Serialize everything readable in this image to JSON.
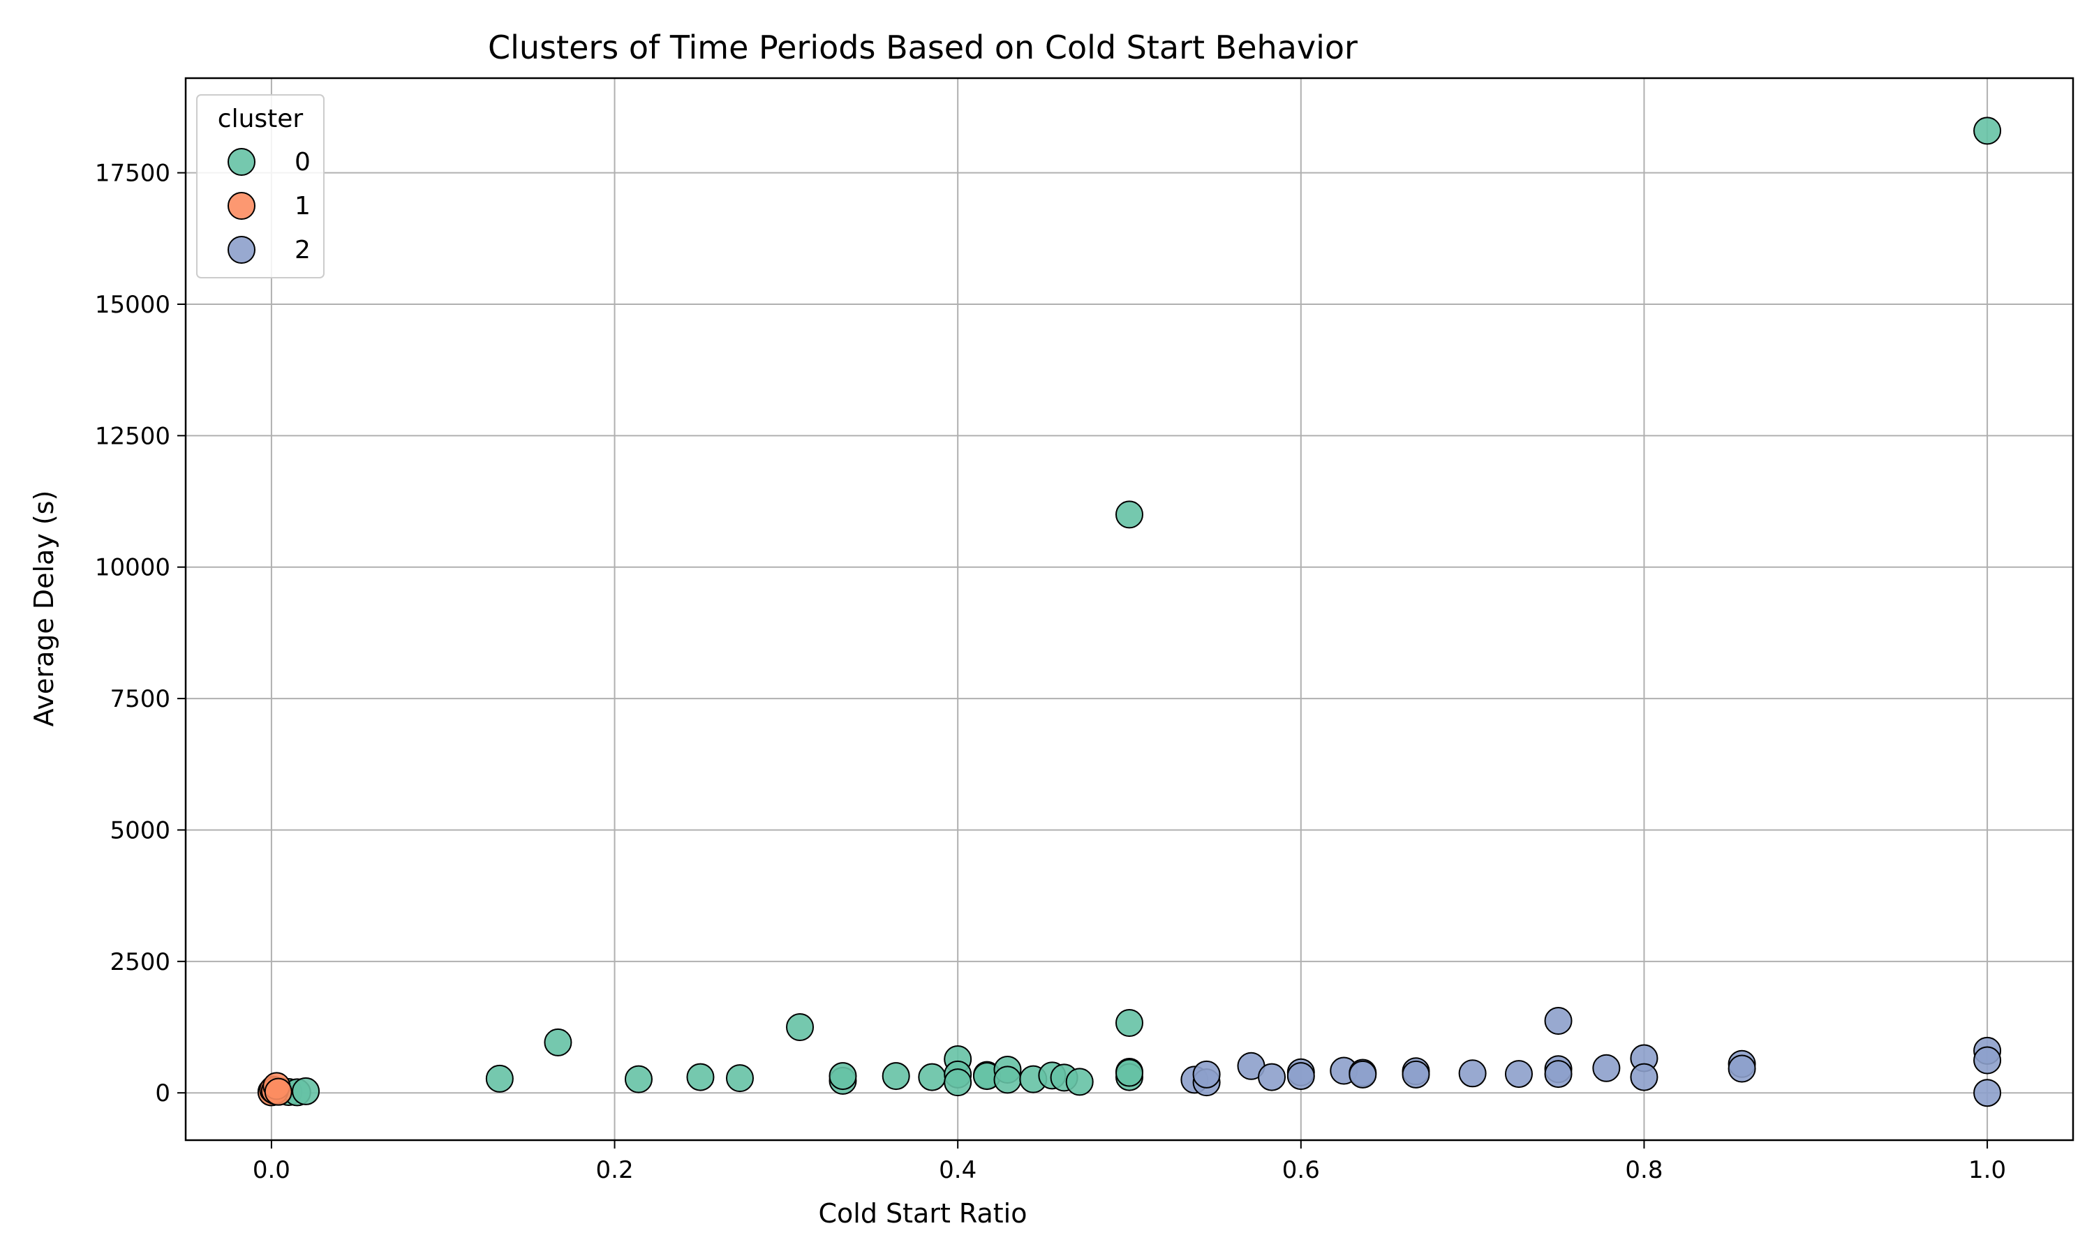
{
  "chart_data": {
    "type": "scatter",
    "title": "Clusters of Time Periods Based on Cold Start Behavior",
    "xlabel": "Cold Start Ratio",
    "ylabel": "Average Delay (s)",
    "xlim": [
      -0.05,
      1.05
    ],
    "ylim": [
      -900,
      19300
    ],
    "xticks": [
      0.0,
      0.2,
      0.4,
      0.6,
      0.8,
      1.0
    ],
    "xtick_labels": [
      "0.0",
      "0.2",
      "0.4",
      "0.6",
      "0.8",
      "1.0"
    ],
    "yticks": [
      0,
      2500,
      5000,
      7500,
      10000,
      12500,
      15000,
      17500
    ],
    "ytick_labels": [
      "0",
      "2500",
      "5000",
      "7500",
      "10000",
      "12500",
      "15000",
      "17500"
    ],
    "grid": true,
    "legend": {
      "title": "cluster",
      "placement": "top-left"
    },
    "series": [
      {
        "name": "0",
        "color": "#66c2a5",
        "points": [
          [
            0.0,
            20
          ],
          [
            0.005,
            30
          ],
          [
            0.01,
            15
          ],
          [
            0.015,
            10
          ],
          [
            0.02,
            30
          ],
          [
            0.133,
            270
          ],
          [
            0.167,
            960
          ],
          [
            0.214,
            260
          ],
          [
            0.25,
            300
          ],
          [
            0.273,
            280
          ],
          [
            0.308,
            1250
          ],
          [
            0.333,
            230
          ],
          [
            0.333,
            320
          ],
          [
            0.364,
            320
          ],
          [
            0.385,
            300
          ],
          [
            0.4,
            640
          ],
          [
            0.4,
            350
          ],
          [
            0.4,
            200
          ],
          [
            0.417,
            340
          ],
          [
            0.417,
            320
          ],
          [
            0.429,
            440
          ],
          [
            0.429,
            250
          ],
          [
            0.444,
            260
          ],
          [
            0.455,
            330
          ],
          [
            0.462,
            290
          ],
          [
            0.471,
            210
          ],
          [
            0.5,
            1330
          ],
          [
            0.5,
            400
          ],
          [
            0.5,
            300
          ],
          [
            0.5,
            380
          ],
          [
            0.5,
            11000
          ],
          [
            1.0,
            18300
          ]
        ]
      },
      {
        "name": "1",
        "color": "#fc8d62",
        "points": [
          [
            0.0,
            10
          ],
          [
            0.001,
            60
          ],
          [
            0.002,
            40
          ],
          [
            0.003,
            130
          ],
          [
            0.004,
            20
          ]
        ]
      },
      {
        "name": "2",
        "color": "#8da0cb",
        "points": [
          [
            0.538,
            250
          ],
          [
            0.545,
            200
          ],
          [
            0.545,
            350
          ],
          [
            0.571,
            510
          ],
          [
            0.583,
            300
          ],
          [
            0.6,
            390
          ],
          [
            0.6,
            320
          ],
          [
            0.625,
            420
          ],
          [
            0.636,
            380
          ],
          [
            0.636,
            350
          ],
          [
            0.667,
            410
          ],
          [
            0.667,
            350
          ],
          [
            0.7,
            370
          ],
          [
            0.727,
            360
          ],
          [
            0.75,
            1370
          ],
          [
            0.75,
            450
          ],
          [
            0.75,
            360
          ],
          [
            0.778,
            470
          ],
          [
            0.8,
            660
          ],
          [
            0.8,
            300
          ],
          [
            0.857,
            550
          ],
          [
            0.857,
            460
          ],
          [
            1.0,
            800
          ],
          [
            1.0,
            620
          ],
          [
            1.0,
            0
          ]
        ]
      }
    ]
  }
}
